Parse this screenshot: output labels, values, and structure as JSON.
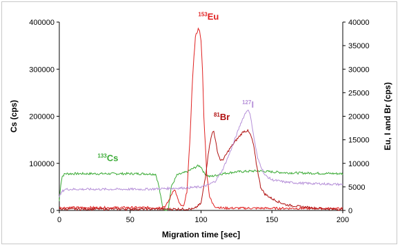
{
  "chart_data": {
    "type": "line",
    "title": "",
    "xlabel": "Migration time [sec]",
    "ylabel_left": "Cs (cps)",
    "ylabel_right": "Eu, I and Br (cps)",
    "xlim": [
      0,
      200
    ],
    "ylim_left": [
      0,
      400000
    ],
    "ylim_right": [
      0,
      40000
    ],
    "x_ticks": [
      "0",
      "50",
      "100",
      "150",
      "200"
    ],
    "y_left_ticks": [
      "0",
      "100000",
      "200000",
      "300000",
      "400000"
    ],
    "y_right_ticks": [
      "0",
      "5000",
      "10000",
      "15000",
      "20000",
      "25000",
      "30000",
      "35000",
      "40000"
    ],
    "grid": false,
    "legend": "none",
    "series": [
      {
        "name": "133Cs",
        "axis": "left",
        "color": "#3aaa35",
        "x": [
          0,
          1,
          2,
          4,
          60,
          68,
          70,
          73,
          75,
          77,
          79,
          83,
          90,
          95,
          98,
          100,
          102,
          104,
          106,
          110,
          115,
          120,
          125,
          140,
          150,
          160,
          200
        ],
        "y": [
          20000,
          55000,
          72000,
          78000,
          78000,
          77000,
          55000,
          5000,
          0,
          5000,
          50000,
          75000,
          82000,
          90000,
          95000,
          93000,
          80000,
          75000,
          72000,
          74000,
          78000,
          80000,
          82000,
          84000,
          82000,
          80000,
          78000
        ]
      },
      {
        "name": "153Eu",
        "axis": "right",
        "color": "#e02020",
        "x": [
          0,
          70,
          75,
          78,
          80,
          81,
          82,
          84,
          86,
          88,
          90,
          92,
          94,
          96,
          98,
          99,
          100,
          101,
          102,
          104,
          106,
          108,
          110,
          115,
          200
        ],
        "y": [
          600,
          600,
          900,
          2500,
          4000,
          4500,
          4000,
          2000,
          900,
          1000,
          4000,
          14000,
          28000,
          37000,
          38500,
          38000,
          36000,
          30000,
          20000,
          8000,
          3000,
          1500,
          800,
          500,
          400
        ]
      },
      {
        "name": "81Br",
        "axis": "right",
        "color": "#b01010",
        "x": [
          0,
          95,
          100,
          103,
          106,
          108,
          109,
          110,
          112,
          114,
          116,
          118,
          120,
          125,
          130,
          133,
          135,
          137,
          139,
          142,
          145,
          150,
          155,
          160,
          170,
          180,
          200
        ],
        "y": [
          300,
          300,
          1500,
          7000,
          14000,
          16500,
          17000,
          15000,
          12000,
          10500,
          11000,
          12000,
          13000,
          15000,
          16800,
          16900,
          16000,
          14000,
          10000,
          5000,
          3500,
          2500,
          1800,
          1200,
          800,
          500,
          200
        ]
      },
      {
        "name": "127I",
        "axis": "right",
        "color": "#b58fd8",
        "x": [
          0,
          2,
          4,
          60,
          90,
          100,
          105,
          110,
          115,
          120,
          125,
          128,
          131,
          133,
          135,
          137,
          140,
          145,
          150,
          160,
          170,
          180,
          200
        ],
        "y": [
          3000,
          4000,
          4500,
          4500,
          4800,
          5000,
          5400,
          6200,
          8500,
          12000,
          16000,
          18500,
          20500,
          21500,
          20000,
          16000,
          11000,
          7500,
          6500,
          6000,
          5800,
          5700,
          5500
        ]
      }
    ],
    "annotations": [
      {
        "sup": "133",
        "text": "Cs",
        "color": "#3aaa35",
        "x": 27,
        "y_right": 10500
      },
      {
        "sup": "153",
        "text": "Eu",
        "color": "#e02020",
        "x": 98,
        "y_right": 40500
      },
      {
        "sup": "81",
        "text": "Br",
        "color": "#b01010",
        "x": 109,
        "y_right": 19200
      },
      {
        "sup": "127",
        "text": "I",
        "color": "#b58fd8",
        "x": 129,
        "y_right": 21800
      }
    ]
  }
}
